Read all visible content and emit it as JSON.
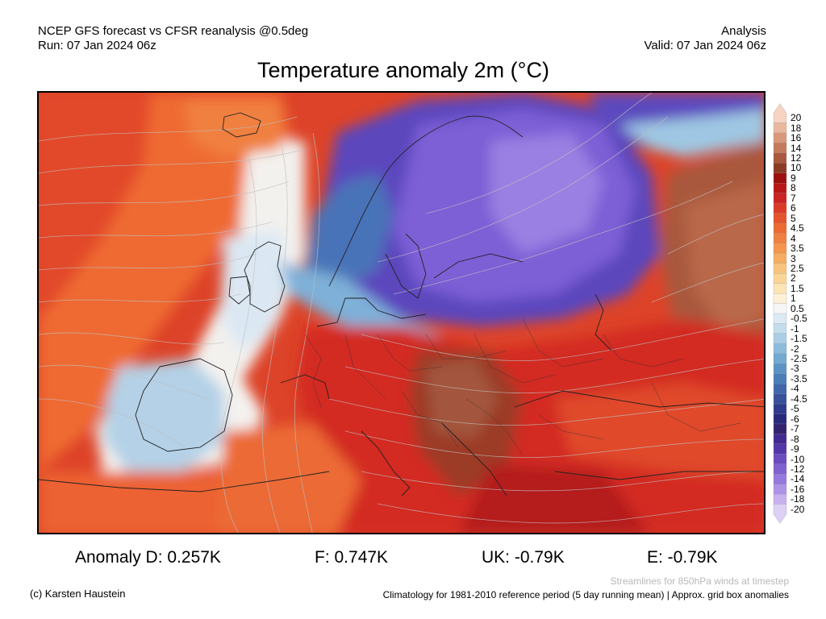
{
  "header": {
    "left_line1": "NCEP GFS forecast vs CFSR reanalysis @0.5deg",
    "left_line2": "Run: 07 Jan 2024 06z",
    "right_line1": "Analysis",
    "right_line2": "Valid: 07 Jan 2024 06z"
  },
  "title": "Temperature anomaly 2m (°C)",
  "colorbar": {
    "levels": [
      "20",
      "18",
      "16",
      "14",
      "12",
      "10",
      "9",
      "8",
      "7",
      "6",
      "5",
      "4.5",
      "4",
      "3.5",
      "3",
      "2.5",
      "2",
      "1.5",
      "1",
      "0.5",
      "-0.5",
      "-1",
      "-1.5",
      "-2",
      "-2.5",
      "-3",
      "-3.5",
      "-4",
      "-4.5",
      "-5",
      "-6",
      "-7",
      "-8",
      "-9",
      "-10",
      "-12",
      "-14",
      "-16",
      "-18",
      "-20"
    ],
    "colors": [
      "#f6d3c3",
      "#eab89e",
      "#d9987a",
      "#c47a5d",
      "#a9583e",
      "#8b3a24",
      "#9c1010",
      "#b81818",
      "#cc2323",
      "#dc3a28",
      "#e5532d",
      "#ec6a34",
      "#f08040",
      "#f4964e",
      "#f6ad62",
      "#f8c37c",
      "#fad596",
      "#fce4b6",
      "#fdf0d6",
      "#f6f6f6",
      "#dbeaf4",
      "#c3dded",
      "#a9cde4",
      "#8dbbdb",
      "#73a8d1",
      "#5b93c5",
      "#4a7eb8",
      "#3f67aa",
      "#37519b",
      "#2f3b8c",
      "#2a2a7c",
      "#33226d",
      "#412a8f",
      "#5337a9",
      "#6a4bc0",
      "#7f61cf",
      "#9679dc",
      "#ad94e6",
      "#c7b2ef",
      "#ddd0f6"
    ]
  },
  "stats": {
    "anomaly_d": "Anomaly D: 0.257K",
    "f": "F: 0.747K",
    "uk": "UK: -0.79K",
    "e": "E: -0.79K"
  },
  "footer": {
    "copyright": "(c) Karsten Haustein",
    "streamlines": "Streamlines for 850hPa winds at timestep",
    "climatology": "Climatology for 1981-2010 reference period (5 day running mean) | Approx. grid box anomalies"
  }
}
